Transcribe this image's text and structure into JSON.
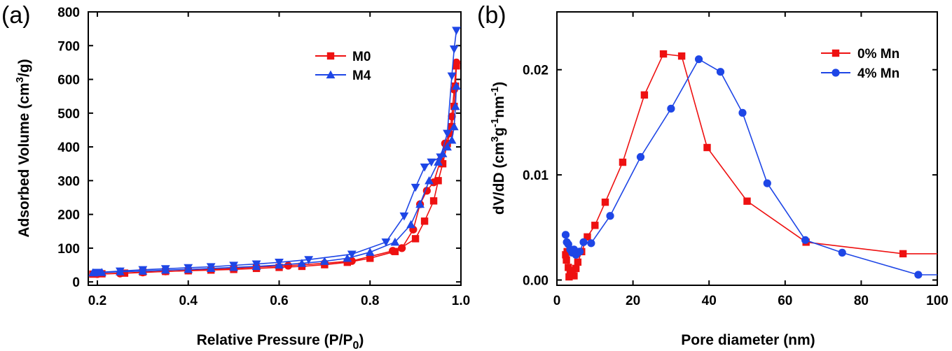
{
  "colors": {
    "red": "#ee1111",
    "blue": "#1e46e6"
  },
  "chart_data": [
    {
      "type": "line",
      "panel_label": "(a)",
      "xlabel": "Relative Pressure (P/P",
      "xlabel_sub": "0",
      "xlabel_tail": ")",
      "ylabel": "Adsorbed Volume (cm",
      "ylabel_sup": "3",
      "ylabel_tail": "/g)",
      "xlim": [
        0.18,
        1.0
      ],
      "ylim": [
        -10,
        800
      ],
      "xticks": [
        "0.2",
        "0.4",
        "0.6",
        "0.8",
        "1.0"
      ],
      "xtick_values": [
        0.2,
        0.4,
        0.6,
        0.8,
        1.0
      ],
      "yticks": [
        "0",
        "100",
        "200",
        "300",
        "400",
        "500",
        "600",
        "700",
        "800"
      ],
      "ytick_values": [
        0,
        100,
        200,
        300,
        400,
        500,
        600,
        700,
        800
      ],
      "legend_position": "top-right",
      "series": [
        {
          "name": "M0",
          "color_key": "red",
          "marker": "square",
          "adsorption": {
            "x": [
              0.19,
              0.21,
              0.26,
              0.3,
              0.35,
              0.4,
              0.45,
              0.5,
              0.55,
              0.6,
              0.65,
              0.7,
              0.75,
              0.8,
              0.855,
              0.9,
              0.92,
              0.94,
              0.95,
              0.96,
              0.97,
              0.98,
              0.985,
              0.988,
              0.99
            ],
            "y": [
              23,
              24,
              26,
              29,
              31,
              33,
              35,
              37,
              40,
              43,
              46,
              51,
              58,
              70,
              90,
              128,
              180,
              240,
              300,
              350,
              410,
              460,
              520,
              580,
              640
            ]
          },
          "desorption": {
            "x": [
              0.99,
              0.985,
              0.98,
              0.975,
              0.965,
              0.955,
              0.94,
              0.925,
              0.91,
              0.895,
              0.87,
              0.85,
              0.76,
              0.7,
              0.62,
              0.55,
              0.5,
              0.45,
              0.4,
              0.35,
              0.3,
              0.25,
              0.2
            ],
            "y": [
              650,
              570,
              490,
              440,
              410,
              360,
              295,
              270,
              230,
              155,
              100,
              92,
              62,
              55,
              48,
              44,
              40,
              37,
              34,
              31,
              28,
              25,
              23
            ]
          }
        },
        {
          "name": "M4",
          "color_key": "blue",
          "marker": "triangle",
          "adsorption": {
            "x": [
              0.19,
              0.21,
              0.25,
              0.3,
              0.35,
              0.4,
              0.45,
              0.5,
              0.55,
              0.6,
              0.65,
              0.7,
              0.75,
              0.8,
              0.855,
              0.89,
              0.91,
              0.93,
              0.95,
              0.96,
              0.97,
              0.98,
              0.985,
              0.988,
              0.99
            ],
            "y": [
              27,
              28,
              30,
              32,
              35,
              37,
              40,
              43,
              46,
              50,
              55,
              61,
              70,
              88,
              118,
              170,
              230,
              300,
              355,
              380,
              400,
              420,
              460,
              520,
              580
            ]
          },
          "desorption": {
            "x": [
              0.99,
              0.985,
              0.98,
              0.97,
              0.955,
              0.935,
              0.92,
              0.9,
              0.875,
              0.835,
              0.76,
              0.665,
              0.6,
              0.55,
              0.5,
              0.45,
              0.4,
              0.35,
              0.3,
              0.25,
              0.2
            ],
            "y": [
              745,
              690,
              610,
              440,
              370,
              355,
              340,
              280,
              195,
              118,
              82,
              66,
              58,
              53,
              49,
              45,
              42,
              39,
              36,
              32,
              28
            ]
          }
        }
      ]
    },
    {
      "type": "line",
      "panel_label": "(b)",
      "xlabel": "Pore diameter (nm)",
      "ylabel": "dV/dD (cm",
      "ylabel_sup1": "3",
      "ylabel_mid": "g",
      "ylabel_sup2": "-1",
      "ylabel_mid2": "nm",
      "ylabel_sup3": "-1",
      "ylabel_tail": ")",
      "xlim": [
        0,
        100
      ],
      "ylim": [
        -0.0005,
        0.0255
      ],
      "xticks": [
        "0",
        "20",
        "40",
        "60",
        "80",
        "100"
      ],
      "xtick_values": [
        0,
        20,
        40,
        60,
        80,
        100
      ],
      "yticks": [
        "0.00",
        "0.01",
        "0.02"
      ],
      "ytick_values": [
        0.0,
        0.01,
        0.02
      ],
      "legend_position": "top-right",
      "series": [
        {
          "name": "0% Mn",
          "color_key": "red",
          "marker": "square",
          "x": [
            100,
            91,
            65.5,
            50,
            39.5,
            32.8,
            28,
            23,
            17.3,
            12.7,
            10,
            8,
            6.5,
            5.5,
            5,
            4.5,
            4,
            3.5,
            3.2,
            3,
            2.7,
            2.5,
            2.3
          ],
          "y": [
            0.0025,
            0.0025,
            0.0036,
            0.0075,
            0.0126,
            0.0213,
            0.0215,
            0.0176,
            0.0112,
            0.0074,
            0.0052,
            0.0041,
            0.0027,
            0.0017,
            0.0011,
            0.0004,
            0.0006,
            0.0009,
            0.0003,
            0.0012,
            0.0027,
            0.0019,
            0.0024
          ]
        },
        {
          "name": "4% Mn",
          "color_key": "blue",
          "marker": "circle",
          "x": [
            100,
            95,
            75,
            65.3,
            55.3,
            48.8,
            43,
            37.3,
            30,
            22,
            14,
            9,
            7,
            6,
            5,
            4.5,
            4,
            3.5,
            3,
            2.6,
            2.3
          ],
          "y": [
            0.0005,
            0.0005,
            0.0026,
            0.0038,
            0.0092,
            0.0159,
            0.0198,
            0.021,
            0.0163,
            0.0117,
            0.0061,
            0.0035,
            0.0036,
            0.0027,
            0.0024,
            0.0029,
            0.0026,
            0.0029,
            0.0034,
            0.0036,
            0.0043
          ]
        }
      ]
    }
  ]
}
